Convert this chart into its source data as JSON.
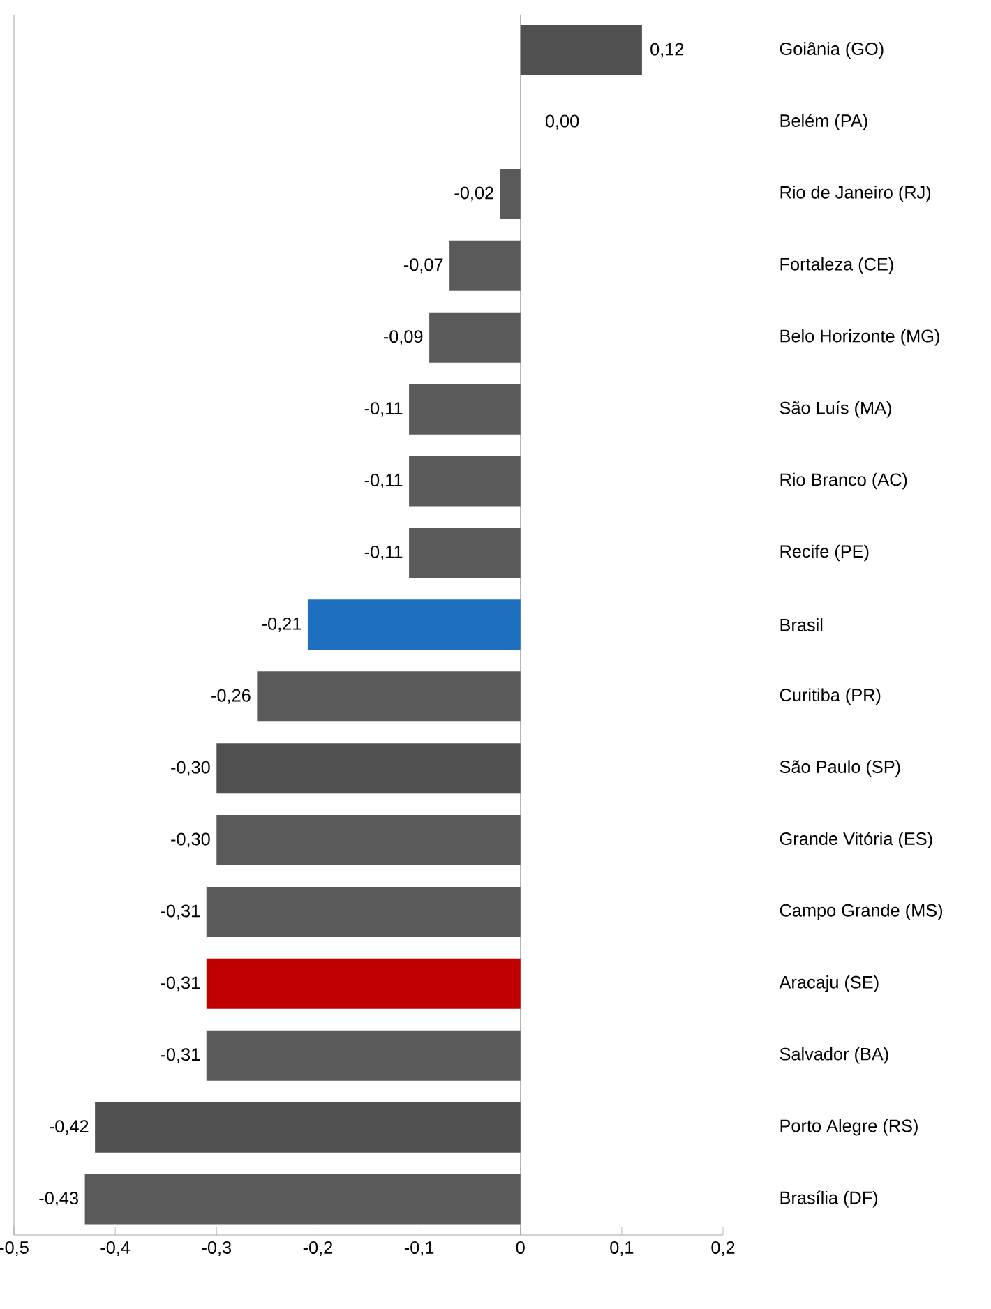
{
  "chart_data": {
    "type": "bar",
    "orientation": "horizontal",
    "categories": [
      "Goiânia (GO)",
      "Belém (PA)",
      "Rio de Janeiro (RJ)",
      "Fortaleza (CE)",
      "Belo Horizonte (MG)",
      "São Luís (MA)",
      "Rio Branco (AC)",
      "Recife (PE)",
      "Brasil",
      "Curitiba (PR)",
      "São Paulo (SP)",
      "Grande Vitória (ES)",
      "Campo Grande (MS)",
      "Aracaju (SE)",
      "Salvador (BA)",
      "Porto Alegre (RS)",
      "Brasília (DF)"
    ],
    "values": [
      0.12,
      0.0,
      -0.02,
      -0.07,
      -0.09,
      -0.11,
      -0.11,
      -0.11,
      -0.21,
      -0.26,
      -0.3,
      -0.3,
      -0.31,
      -0.31,
      -0.31,
      -0.42,
      -0.43
    ],
    "value_labels": [
      "0,12",
      "0,00",
      "-0,02",
      "-0,07",
      "-0,09",
      "-0,11",
      "-0,11",
      "-0,11",
      "-0,21",
      "-0,26",
      "-0,30",
      "-0,30",
      "-0,31",
      "-0,31",
      "-0,31",
      "-0,42",
      "-0,43"
    ],
    "colors": [
      "#505050",
      "#505050",
      "#5a5a5a",
      "#5a5a5a",
      "#5a5a5a",
      "#5a5a5a",
      "#5a5a5a",
      "#5a5a5a",
      "#1f6fc0",
      "#5a5a5a",
      "#505050",
      "#5a5a5a",
      "#5a5a5a",
      "#c00000",
      "#5a5a5a",
      "#505050",
      "#5a5a5a"
    ],
    "xlim": [
      -0.5,
      0.2
    ],
    "xticks": [
      {
        "value": -0.5,
        "label": "-0,5"
      },
      {
        "value": -0.4,
        "label": "-0,4"
      },
      {
        "value": -0.3,
        "label": "-0,3"
      },
      {
        "value": -0.2,
        "label": "-0,2"
      },
      {
        "value": -0.1,
        "label": "-0,1"
      },
      0,
      {
        "value": 0.1,
        "label": "0,1"
      },
      {
        "value": 0.2,
        "label": "0,2"
      }
    ],
    "ref_lines": [
      {
        "axis": "x",
        "value": 0
      }
    ],
    "grid": false
  }
}
